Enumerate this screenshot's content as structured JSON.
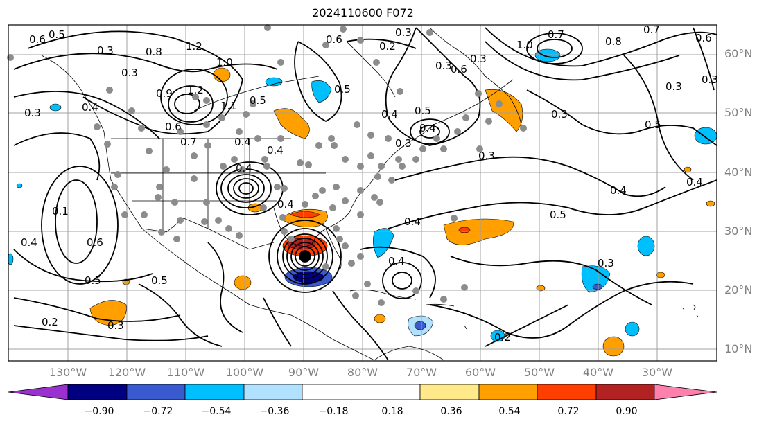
{
  "title": "2024110600 F072",
  "lat_labels": [
    "60°N",
    "50°N",
    "40°N",
    "30°N",
    "20°N",
    "10°N"
  ],
  "lon_labels": [
    "130°W",
    "120°W",
    "110°W",
    "100°W",
    "90°W",
    "80°W",
    "70°W",
    "60°W",
    "50°W",
    "40°W",
    "30°W"
  ],
  "colorbar": {
    "ticks": [
      "−0.90",
      "−0.72",
      "−0.54",
      "−0.36",
      "−0.18",
      "0.18",
      "0.36",
      "0.54",
      "0.72",
      "0.90"
    ],
    "colors": [
      "#9a30cf",
      "#000080",
      "#3a5bd0",
      "#00bfff",
      "#b0e2ff",
      "#ffffff",
      "#ffe98a",
      "#ff9f00",
      "#ff3f00",
      "#b22222",
      "#ff80ad"
    ]
  },
  "contour_labels": [
    "0.6",
    "0.5",
    "0.3",
    "0.8",
    "1.2",
    "1.0",
    "0.9",
    "0.3",
    "1.2",
    "1.1",
    "0.5",
    "0.3",
    "0.4",
    "0.6",
    "0.4",
    "0.7",
    "0.4",
    "0.6",
    "0.3",
    "0.2",
    "0.5",
    "0.4",
    "0.3",
    "0.4",
    "0.5",
    "0.3",
    "0.6",
    "0.3",
    "0.3",
    "1.0",
    "0.7",
    "0.8",
    "0.7",
    "0.3",
    "0.6",
    "0.5",
    "0.3",
    "0.4",
    "0.4",
    "0.5",
    "0.4",
    "0.1",
    "0.6",
    "0.4",
    "0.5",
    "0.5",
    "0.2",
    "0.3",
    "0.4",
    "0.3",
    "0.4",
    "0.2",
    "0.3",
    "0.4"
  ],
  "colors": {
    "axes": "#000000",
    "grid": "#a0a0a0",
    "gray_dot": "#8c8c8c"
  }
}
